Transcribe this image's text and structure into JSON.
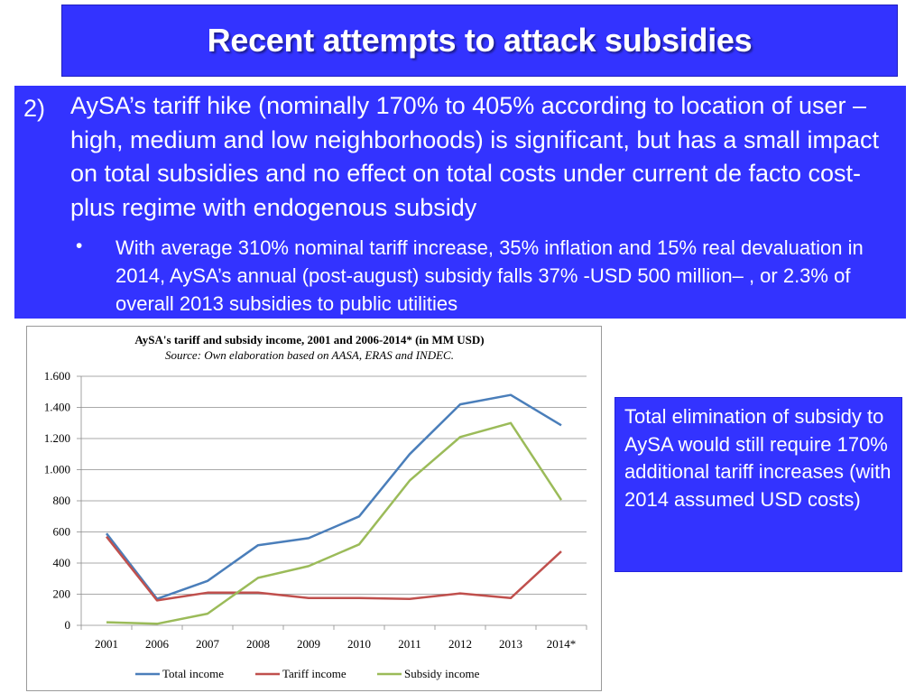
{
  "slide": {
    "title": "Recent attempts to attack subsidies",
    "point_number": "2)",
    "point_text": "AySA’s tariff hike (nominally 170% to 405% according to location of user –high, medium and low neighborhoods) is significant, but has a small impact on total subsidies and no effect on total costs under current de facto cost-plus regime with endogenous subsidy",
    "bullet_marker": "•",
    "bullet_text": "With average 310% nominal tariff increase, 35% inflation and 15% real devaluation in 2014, AySA’s annual (post-august) subsidy falls 37% -USD 500 million– , or 2.3% of overall 2013 subsidies to public utilities",
    "side_note": "Total elimination of subsidy to AySA would still require 170% additional tariff increases (with 2014 assumed USD costs)"
  },
  "colors": {
    "slide_blue": "#3333ff",
    "total": "#4a7eba",
    "tariff": "#c0504d",
    "subsidy": "#9bbb59"
  },
  "chart_data": {
    "type": "line",
    "title": "AySA's tariff and subsidy income, 2001 and 2006-2014* (in MM USD)",
    "subtitle": "Source: Own elaboration based on AASA, ERAS and INDEC.",
    "categories": [
      "2001",
      "2006",
      "2007",
      "2008",
      "2009",
      "2010",
      "2011",
      "2012",
      "2013",
      "2014*"
    ],
    "ylim": [
      0,
      1600
    ],
    "yticks": [
      0,
      200,
      400,
      600,
      800,
      1000,
      1200,
      1400,
      1600
    ],
    "ytick_labels": [
      "0",
      "200",
      "400",
      "600",
      "800",
      "1.000",
      "1.200",
      "1.400",
      "1.600"
    ],
    "grid": true,
    "legend_position": "bottom",
    "series": [
      {
        "name": "Total income",
        "key": "total",
        "values": [
          590,
          170,
          285,
          515,
          560,
          700,
          1100,
          1420,
          1480,
          1285
        ]
      },
      {
        "name": "Tariff income",
        "key": "tariff",
        "values": [
          570,
          160,
          210,
          210,
          175,
          175,
          170,
          205,
          175,
          475
        ]
      },
      {
        "name": "Subsidy income",
        "key": "subsidy",
        "values": [
          20,
          10,
          75,
          305,
          380,
          520,
          930,
          1210,
          1300,
          805
        ]
      }
    ]
  }
}
